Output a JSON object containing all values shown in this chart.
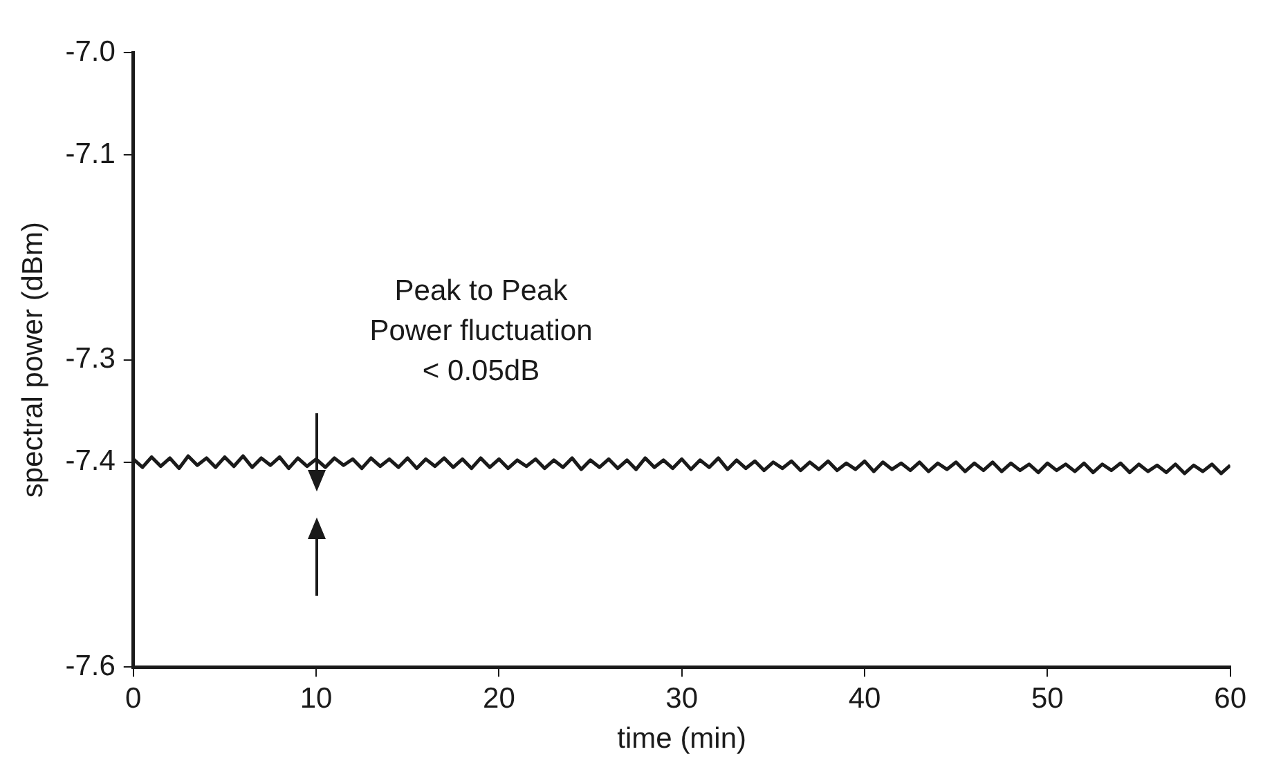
{
  "chart_data": {
    "type": "line",
    "xlabel": "time (min)",
    "ylabel": "spectral power (dBm)",
    "xlim": [
      0,
      60
    ],
    "xticks": [
      0,
      10,
      20,
      30,
      40,
      50,
      60
    ],
    "ylim": [
      -7.6,
      -7.0
    ],
    "yticks": [
      {
        "value": -7,
        "label": "-7.0"
      },
      -7.1,
      -7.3,
      -7.4,
      -7.6
    ],
    "grid": false,
    "legend": false,
    "marker": "none",
    "line_style": "solid",
    "annotations": [
      "Peak to Peak\nPower fluctuation\n< 0.05dB"
    ],
    "series": [
      {
        "color": "#1a1a1a",
        "x": [
          0,
          0.5,
          1,
          1.5,
          2,
          2.5,
          3,
          3.5,
          4,
          4.5,
          5,
          5.5,
          6,
          6.5,
          7,
          7.5,
          8,
          8.5,
          9,
          9.5,
          10,
          10.5,
          11,
          11.5,
          12,
          12.5,
          13,
          13.5,
          14,
          14.5,
          15,
          15.5,
          16,
          16.5,
          17,
          17.5,
          18,
          18.5,
          19,
          19.5,
          20,
          20.5,
          21,
          21.5,
          22,
          22.5,
          23,
          23.5,
          24,
          24.5,
          25,
          25.5,
          26,
          26.5,
          27,
          27.5,
          28,
          28.5,
          29,
          29.5,
          30,
          30.5,
          31,
          31.5,
          32,
          32.5,
          33,
          33.5,
          34,
          34.5,
          35,
          35.5,
          36,
          36.5,
          37,
          37.5,
          38,
          38.5,
          39,
          39.5,
          40,
          40.5,
          41,
          41.5,
          42,
          42.5,
          43,
          43.5,
          44,
          44.5,
          45,
          45.5,
          46,
          46.5,
          47,
          47.5,
          48,
          48.5,
          49,
          49.5,
          50,
          50.5,
          51,
          51.5,
          52,
          52.5,
          53,
          53.5,
          54,
          54.5,
          55,
          55.5,
          56,
          56.5,
          57,
          57.5,
          58,
          58.5,
          59,
          59.5,
          60
        ],
        "values": [
          -7.397,
          -7.405,
          -7.395,
          -7.404,
          -7.396,
          -7.406,
          -7.394,
          -7.403,
          -7.396,
          -7.405,
          -7.395,
          -7.404,
          -7.394,
          -7.405,
          -7.396,
          -7.403,
          -7.395,
          -7.406,
          -7.396,
          -7.404,
          -7.397,
          -7.405,
          -7.396,
          -7.403,
          -7.397,
          -7.406,
          -7.396,
          -7.404,
          -7.397,
          -7.405,
          -7.396,
          -7.406,
          -7.397,
          -7.404,
          -7.396,
          -7.405,
          -7.397,
          -7.406,
          -7.396,
          -7.405,
          -7.397,
          -7.406,
          -7.398,
          -7.404,
          -7.397,
          -7.406,
          -7.398,
          -7.405,
          -7.396,
          -7.407,
          -7.398,
          -7.405,
          -7.397,
          -7.406,
          -7.398,
          -7.407,
          -7.396,
          -7.405,
          -7.398,
          -7.406,
          -7.397,
          -7.407,
          -7.398,
          -7.405,
          -7.396,
          -7.407,
          -7.398,
          -7.406,
          -7.399,
          -7.408,
          -7.4,
          -7.406,
          -7.399,
          -7.408,
          -7.4,
          -7.407,
          -7.399,
          -7.408,
          -7.401,
          -7.407,
          -7.399,
          -7.409,
          -7.4,
          -7.407,
          -7.401,
          -7.408,
          -7.4,
          -7.409,
          -7.401,
          -7.407,
          -7.4,
          -7.409,
          -7.401,
          -7.408,
          -7.4,
          -7.409,
          -7.401,
          -7.408,
          -7.402,
          -7.41,
          -7.401,
          -7.408,
          -7.402,
          -7.409,
          -7.401,
          -7.41,
          -7.402,
          -7.408,
          -7.401,
          -7.41,
          -7.402,
          -7.409,
          -7.403,
          -7.41,
          -7.402,
          -7.411,
          -7.403,
          -7.409,
          -7.402,
          -7.411,
          -7.403
        ]
      }
    ]
  }
}
